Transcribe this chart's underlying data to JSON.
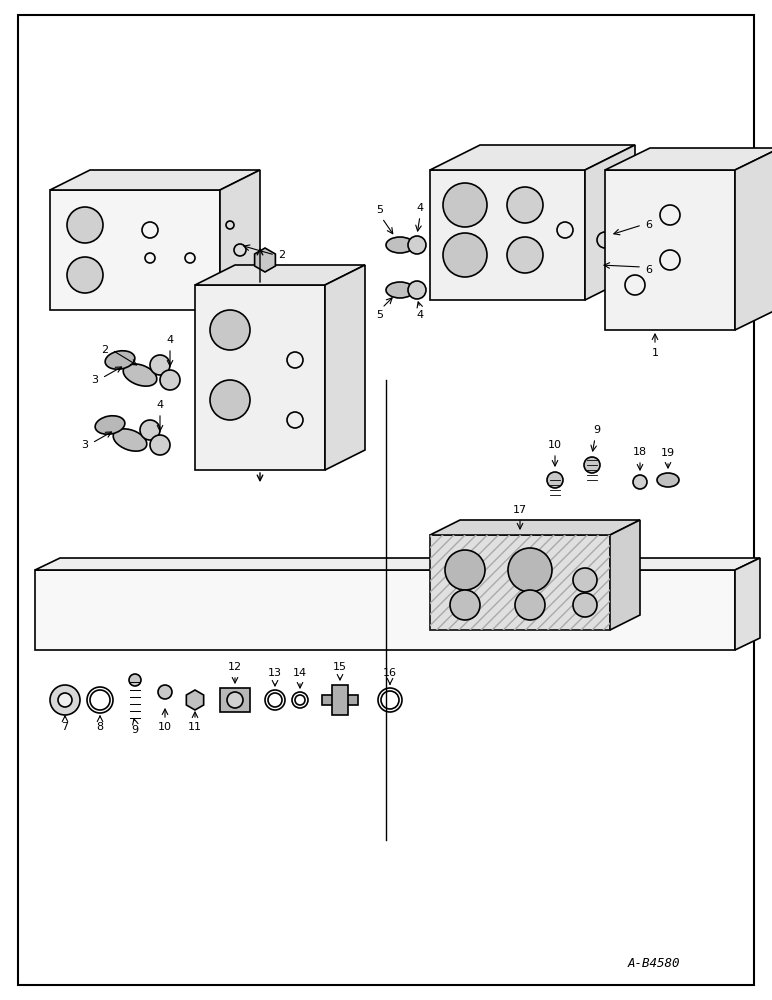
{
  "bg_color": "#ffffff",
  "line_color": "#000000",
  "fig_width": 7.72,
  "fig_height": 10.0,
  "watermark": "A-B4580",
  "parts": [
    {
      "id": 1,
      "label": "1"
    },
    {
      "id": 2,
      "label": "2"
    },
    {
      "id": 3,
      "label": "3"
    },
    {
      "id": 4,
      "label": "4"
    },
    {
      "id": 5,
      "label": "5"
    },
    {
      "id": 6,
      "label": "6"
    },
    {
      "id": 7,
      "label": "7"
    },
    {
      "id": 8,
      "label": "8"
    },
    {
      "id": 9,
      "label": "9"
    },
    {
      "id": 10,
      "label": "10"
    },
    {
      "id": 11,
      "label": "11"
    },
    {
      "id": 12,
      "label": "12"
    },
    {
      "id": 13,
      "label": "13"
    },
    {
      "id": 14,
      "label": "14"
    },
    {
      "id": 15,
      "label": "15"
    },
    {
      "id": 16,
      "label": "16"
    },
    {
      "id": 17,
      "label": "17"
    },
    {
      "id": 18,
      "label": "18"
    },
    {
      "id": 19,
      "label": "19"
    }
  ]
}
